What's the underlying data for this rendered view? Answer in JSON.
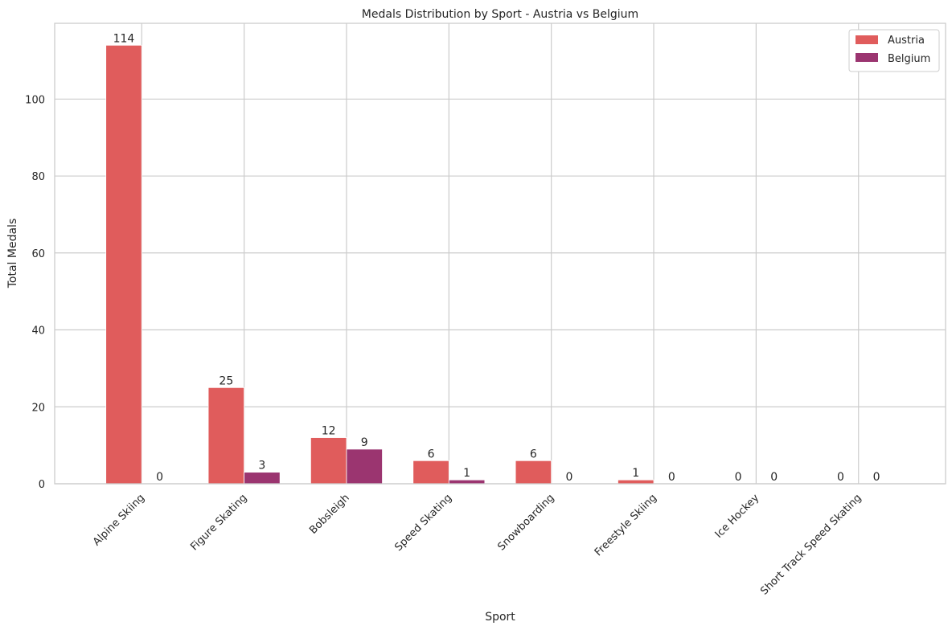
{
  "chart_data": {
    "type": "bar",
    "title": "Medals Distribution by Sport - Austria vs Belgium",
    "xlabel": "Sport",
    "ylabel": "Total Medals",
    "categories": [
      "Alpine Skiing",
      "Figure Skating",
      "Bobsleigh",
      "Speed Skating",
      "Snowboarding",
      "Freestyle Skiing",
      "Ice Hockey",
      "Short Track Speed Skating"
    ],
    "series": [
      {
        "name": "Austria",
        "color": "#e05c5c",
        "values": [
          114,
          25,
          12,
          6,
          6,
          1,
          0,
          0
        ]
      },
      {
        "name": "Belgium",
        "color": "#9b3570",
        "values": [
          0,
          3,
          9,
          1,
          0,
          0,
          0,
          0
        ]
      }
    ],
    "ylim": [
      0,
      119.7
    ],
    "yticks": [
      0,
      20,
      40,
      60,
      80,
      100
    ],
    "grid": true,
    "legend_position": "top-right"
  }
}
